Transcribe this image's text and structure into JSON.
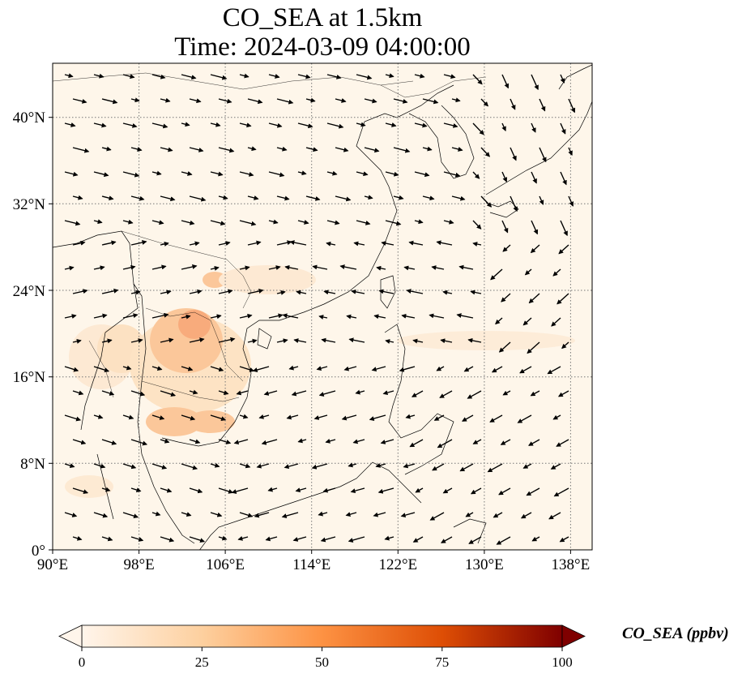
{
  "title_line1": "CO_SEA at 1.5km",
  "title_line2": "Time: 2024-03-09 04:00:00",
  "map": {
    "lon_range": [
      90,
      140
    ],
    "lat_range": [
      0,
      45
    ],
    "x_ticks": [
      "90°E",
      "98°E",
      "106°E",
      "114°E",
      "122°E",
      "130°E",
      "138°E"
    ],
    "y_ticks": [
      "0°",
      "8°N",
      "16°N",
      "24°N",
      "32°N",
      "40°N"
    ],
    "gridlines": "dotted",
    "background_color": "#fef6ea",
    "plume_colors": [
      "#fde3c3",
      "#fbc596",
      "#f8a777"
    ]
  },
  "colorbar": {
    "label": "CO_SEA (ppbv)",
    "ticks": [
      "0",
      "25",
      "50",
      "75",
      "100"
    ],
    "range": [
      0,
      100
    ],
    "extend": "both",
    "colors": [
      "#fff5eb",
      "#fdd09f",
      "#fd9243",
      "#de4e05",
      "#7f0000"
    ]
  }
}
